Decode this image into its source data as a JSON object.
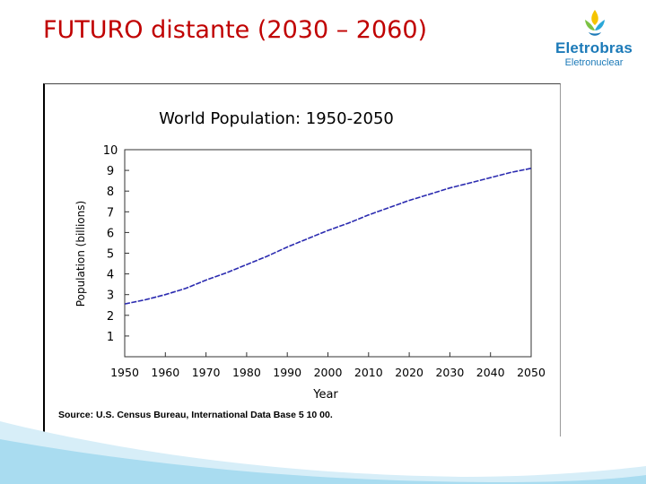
{
  "slide": {
    "title": "FUTURO distante (2030 – 2060)"
  },
  "logo": {
    "name": "Eletrobras",
    "subtitle": "Eletronuclear",
    "brand_colors": [
      "#1c7ab8",
      "#f5c400",
      "#7cc243",
      "#2aa7d8"
    ]
  },
  "chart_data": {
    "type": "line",
    "title": "World Population: 1950-2050",
    "xlabel": "Year",
    "ylabel": "Population (billions)",
    "xlim": [
      1950,
      2050
    ],
    "ylim": [
      0,
      10
    ],
    "x_ticks": [
      "1950",
      "1960",
      "1970",
      "1980",
      "1990",
      "2000",
      "2010",
      "2020",
      "2030",
      "2040",
      "2050"
    ],
    "y_ticks": [
      "1",
      "2",
      "3",
      "4",
      "5",
      "6",
      "7",
      "8",
      "9",
      "10"
    ],
    "grid": false,
    "line_color": "#2b2bb0",
    "series": [
      {
        "x": [
          1950,
          1955,
          1960,
          1965,
          1970,
          1975,
          1980,
          1985,
          1990,
          1995,
          2000,
          2005,
          2010,
          2015,
          2020,
          2025,
          2030,
          2035,
          2040,
          2045,
          2050
        ],
        "values": [
          2.55,
          2.75,
          3.0,
          3.3,
          3.7,
          4.05,
          4.45,
          4.85,
          5.3,
          5.7,
          6.1,
          6.45,
          6.85,
          7.2,
          7.55,
          7.85,
          8.15,
          8.4,
          8.65,
          8.9,
          9.1
        ]
      }
    ],
    "source": "Source: U.S. Census Bureau, International Data Base 5 10 00."
  }
}
